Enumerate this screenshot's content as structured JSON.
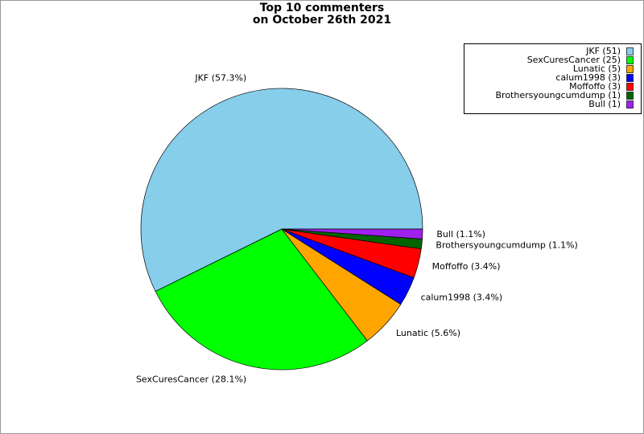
{
  "chart_data": {
    "type": "pie",
    "title": "Top 10 commenters\non October 26th 2021",
    "categories": [
      "JKF",
      "SexCuresCancer",
      "Lunatic",
      "calum1998",
      "Moffoffo",
      "Brothersyoungcumdump",
      "Bull"
    ],
    "values": [
      51,
      25,
      5,
      3,
      3,
      1,
      1
    ],
    "legend_labels": [
      "JKF (51)",
      "SexCuresCancer (25)",
      "Lunatic (5)",
      "calum1998 (3)",
      "Moffoffo (3)",
      "Brothersyoungcumdump (1)",
      "Bull (1)"
    ],
    "slice_labels": [
      "JKF (57.3%)",
      "SexCuresCancer (28.1%)",
      "Lunatic (5.6%)",
      "calum1998 (3.4%)",
      "Moffoffo (3.4%)",
      "Brothersyoungcumdump (1.1%)",
      "Bull (1.1%)"
    ],
    "colors": [
      "#87ceeb",
      "#00ff00",
      "#ffa500",
      "#0000ff",
      "#ff0000",
      "#006400",
      "#a020f0"
    ],
    "legend": "upper right"
  }
}
